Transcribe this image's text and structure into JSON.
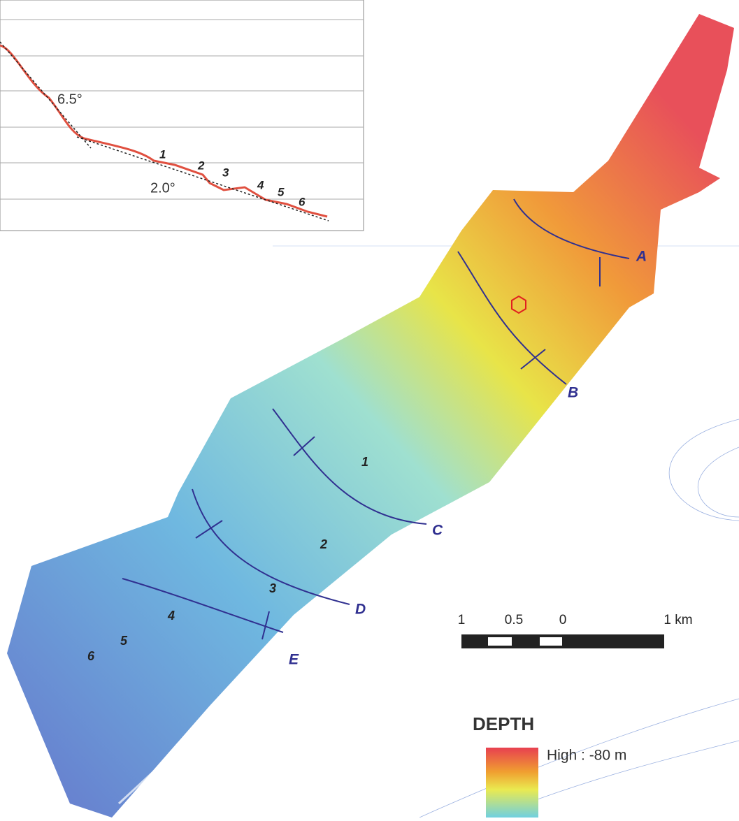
{
  "profile": {
    "slope_labels": [
      "6.5°",
      "2.0°"
    ],
    "point_labels": [
      "1",
      "2",
      "3",
      "4",
      "5",
      "6"
    ]
  },
  "map": {
    "section_labels": [
      "A",
      "B",
      "C",
      "D",
      "E"
    ],
    "feature_labels": [
      "1",
      "2",
      "3",
      "4",
      "5",
      "6"
    ]
  },
  "scale_bar": {
    "labels": [
      "1",
      "0.5",
      "0",
      "1 km"
    ]
  },
  "legend": {
    "title": "DEPTH",
    "high_label": "High : -80 m"
  }
}
